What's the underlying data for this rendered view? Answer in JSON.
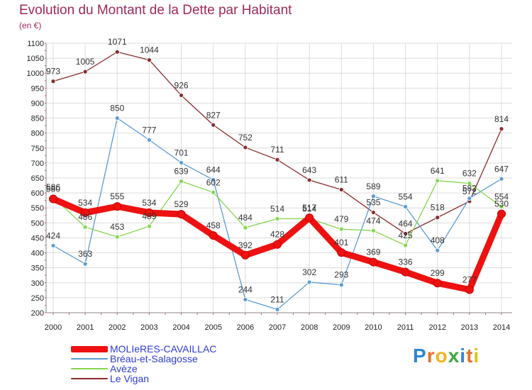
{
  "header": {
    "title": "Evolution du Montant de la Dette par Habitant",
    "subtitle": "(en €)"
  },
  "logo": {
    "text": "Proxiti",
    "letters": [
      "P",
      "r",
      "o",
      "x",
      "i",
      "t",
      "i"
    ],
    "colors": [
      "#2e86d6",
      "#e8702a",
      "#f2b51c",
      "#3fa63f",
      "#2e86d6",
      "#e8702a",
      "#d8c41c"
    ]
  },
  "chart_data": {
    "type": "line",
    "title": "Evolution du Montant de la Dette par Habitant",
    "subtitle": "(en €)",
    "x": [
      2000,
      2001,
      2002,
      2003,
      2004,
      2005,
      2006,
      2007,
      2008,
      2009,
      2010,
      2011,
      2012,
      2013,
      2014
    ],
    "ylim": [
      200,
      1100
    ],
    "yticks": [
      200,
      250,
      300,
      350,
      400,
      450,
      500,
      550,
      600,
      650,
      700,
      750,
      800,
      850,
      900,
      950,
      1000,
      1050,
      1100
    ],
    "grid": true,
    "legend_position": "bottom-left",
    "series": [
      {
        "name": "MOLIeRES-CAVAILLAC",
        "color": "#ee1111",
        "values": [
          580,
          534,
          555,
          534,
          529,
          458,
          392,
          428,
          517,
          401,
          369,
          336,
          299,
          277,
          530
        ]
      },
      {
        "name": "Bréau-et-Salagosse",
        "color": "#5b9bd5",
        "values": [
          424,
          363,
          850,
          777,
          701,
          644,
          244,
          211,
          302,
          293,
          589,
          554,
          408,
          582,
          647
        ]
      },
      {
        "name": "Avèze",
        "color": "#86d64e",
        "values": [
          586,
          486,
          453,
          489,
          639,
          602,
          484,
          514,
          514,
          479,
          474,
          425,
          641,
          632,
          554
        ]
      },
      {
        "name": "Le Vigan",
        "color": "#8b2c2c",
        "values": [
          973,
          1005,
          1071,
          1044,
          926,
          827,
          752,
          711,
          643,
          611,
          535,
          464,
          518,
          572,
          814
        ]
      }
    ]
  }
}
